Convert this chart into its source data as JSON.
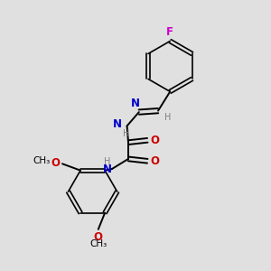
{
  "bg_color": "#e0e0e0",
  "bond_color": "#000000",
  "N_color": "#0000cc",
  "O_color": "#cc0000",
  "F_color": "#cc00cc",
  "H_color": "#808080",
  "font_size": 8.5,
  "fig_width": 3.0,
  "fig_height": 3.0,
  "xlim": [
    0,
    10
  ],
  "ylim": [
    0,
    10
  ]
}
